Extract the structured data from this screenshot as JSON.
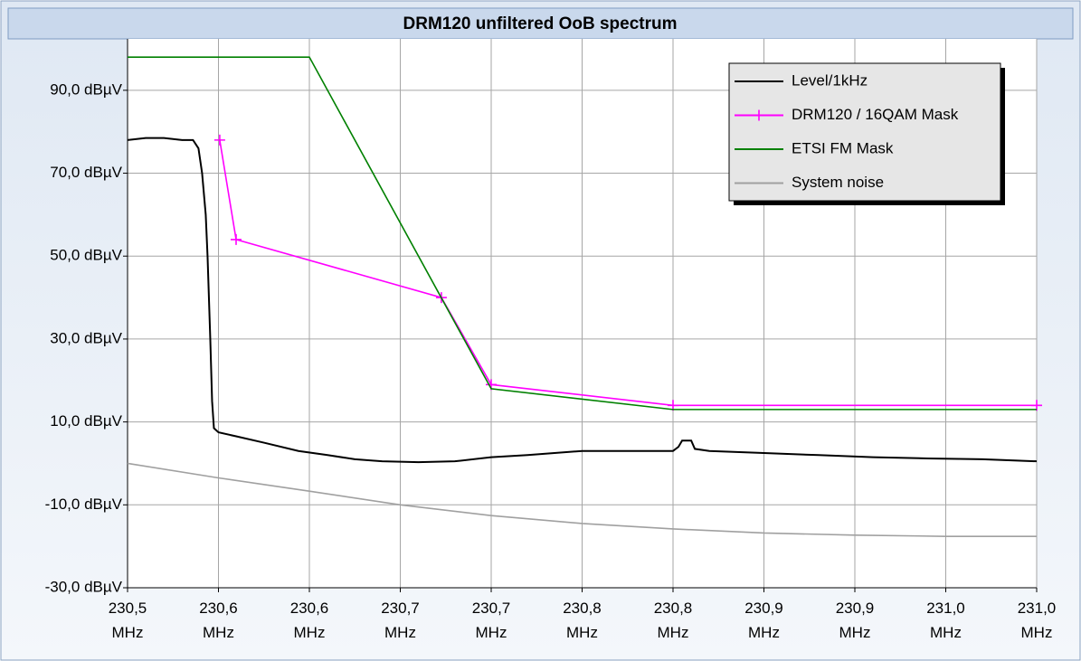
{
  "chart_data": {
    "type": "line",
    "title": "DRM120 unfiltered OoB spectrum",
    "xlim": [
      230.5,
      231.0
    ],
    "xticks": [
      {
        "value": 230.5,
        "label": "230,5 MHz"
      },
      {
        "value": 230.55,
        "label": "230,6 MHz"
      },
      {
        "value": 230.6,
        "label": "230,6 MHz"
      },
      {
        "value": 230.65,
        "label": "230,7 MHz"
      },
      {
        "value": 230.7,
        "label": "230,7 MHz"
      },
      {
        "value": 230.75,
        "label": "230,8 MHz"
      },
      {
        "value": 230.8,
        "label": "230,8 MHz"
      },
      {
        "value": 230.85,
        "label": "230,9 MHz"
      },
      {
        "value": 230.9,
        "label": "230,9 MHz"
      },
      {
        "value": 230.95,
        "label": "231,0 MHz"
      },
      {
        "value": 231.0,
        "label": "231,0 MHz"
      }
    ],
    "ylim": [
      -30,
      102.4
    ],
    "yticks": [
      {
        "value": -30,
        "label": "-30,0 dBµV"
      },
      {
        "value": -10,
        "label": "-10,0 dBµV"
      },
      {
        "value": 10,
        "label": "10,0 dBµV"
      },
      {
        "value": 30,
        "label": "30,0 dBµV"
      },
      {
        "value": 50,
        "label": "50,0 dBµV"
      },
      {
        "value": 70,
        "label": "70,0 dBµV"
      },
      {
        "value": 90,
        "label": "90,0 dBµV"
      }
    ],
    "grid": true,
    "legend": "upper right",
    "series": [
      {
        "name": "Level/1kHz",
        "color": "#000000",
        "marker": false,
        "x": [
          230.5,
          230.51,
          230.52,
          230.53,
          230.536,
          230.539,
          230.541,
          230.543,
          230.544,
          230.5455,
          230.5465,
          230.5475,
          230.55,
          230.56,
          230.575,
          230.594,
          230.61,
          230.625,
          230.64,
          230.66,
          230.68,
          230.7,
          230.72,
          230.75,
          230.78,
          230.8,
          230.803,
          230.805,
          230.81,
          230.812,
          230.82,
          230.85,
          230.88,
          230.91,
          230.94,
          230.97,
          231.0
        ],
        "values": [
          78,
          78.5,
          78.5,
          78,
          78,
          76,
          70,
          60,
          50,
          30,
          15,
          8.5,
          7.5,
          6.5,
          5,
          3,
          2,
          1,
          0.5,
          0.3,
          0.5,
          1.5,
          2,
          3,
          3,
          3,
          4,
          5.5,
          5.5,
          3.5,
          3,
          2.5,
          2,
          1.5,
          1.2,
          1,
          0.5
        ]
      },
      {
        "name": "DRM120 / 16QAM Mask",
        "color": "#ff00ff",
        "marker": true,
        "x": [
          230.5507,
          230.5597,
          230.6726,
          230.7,
          230.8,
          231.0
        ],
        "values": [
          78,
          54,
          40,
          19,
          14,
          14
        ]
      },
      {
        "name": "ETSI FM Mask",
        "color": "#008000",
        "marker": false,
        "x": [
          230.5,
          230.6,
          230.7,
          230.8,
          231.0
        ],
        "values": [
          98,
          98,
          18,
          13,
          13
        ]
      },
      {
        "name": "System noise",
        "color": "#a0a0a0",
        "marker": false,
        "x": [
          230.5,
          230.55,
          230.6,
          230.65,
          230.7,
          230.75,
          230.8,
          230.85,
          230.9,
          230.95,
          231.0
        ],
        "values": [
          0,
          -3.5,
          -6.7,
          -10,
          -12.6,
          -14.5,
          -15.8,
          -16.8,
          -17.3,
          -17.6,
          -17.6
        ]
      }
    ]
  }
}
